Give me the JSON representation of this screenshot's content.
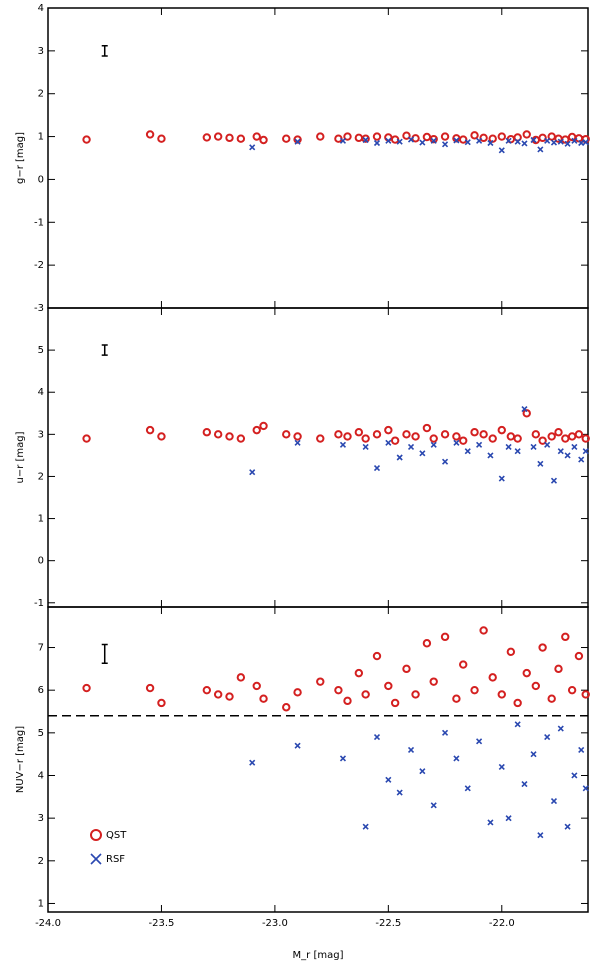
{
  "chart_data": [
    {
      "type": "scatter",
      "ylabel": "g−r [mag]",
      "xlim": [
        -24,
        -21.62
      ],
      "ylim": [
        -3,
        4
      ],
      "yticks": [
        -3,
        -2,
        -1,
        0,
        1,
        2,
        3,
        4
      ],
      "error_marker": {
        "x": -23.75,
        "y": 3,
        "yerr": 0.12
      },
      "series": [
        {
          "color": "#d42020",
          "x": [
            -23.83,
            -23.55,
            -23.5,
            -23.3,
            -23.25,
            -23.2,
            -23.15,
            -23.08,
            -23.05,
            -22.95,
            -22.9,
            -22.8,
            -22.72,
            -22.68,
            -22.63,
            -22.6,
            -22.55,
            -22.5,
            -22.47,
            -22.42,
            -22.38,
            -22.33,
            -22.3,
            -22.25,
            -22.2,
            -22.17,
            -22.12,
            -22.08,
            -22.04,
            -22.0,
            -21.96,
            -21.93,
            -21.89,
            -21.85,
            -21.82,
            -21.78,
            -21.75,
            -21.72,
            -21.69,
            -21.66,
            -21.63
          ],
          "values": [
            0.93,
            1.05,
            0.95,
            0.98,
            1.0,
            0.97,
            0.95,
            1.0,
            0.92,
            0.95,
            0.93,
            1.0,
            0.95,
            1.0,
            0.97,
            0.95,
            1.0,
            0.98,
            0.93,
            1.02,
            0.96,
            0.99,
            0.94,
            1.0,
            0.96,
            0.93,
            1.03,
            0.97,
            0.95,
            1.0,
            0.94,
            0.98,
            1.05,
            0.92,
            0.97,
            1.0,
            0.95,
            0.93,
            0.99,
            0.96,
            0.94
          ]
        },
        {
          "color": "#2a48b0",
          "x": [
            -23.1,
            -22.9,
            -22.7,
            -22.6,
            -22.55,
            -22.5,
            -22.45,
            -22.4,
            -22.35,
            -22.3,
            -22.25,
            -22.2,
            -22.15,
            -22.1,
            -22.05,
            -22.0,
            -21.97,
            -21.93,
            -21.9,
            -21.86,
            -21.83,
            -21.8,
            -21.77,
            -21.74,
            -21.71,
            -21.68,
            -21.65,
            -21.63
          ],
          "values": [
            0.75,
            0.88,
            0.9,
            0.92,
            0.85,
            0.9,
            0.88,
            0.93,
            0.86,
            0.9,
            0.82,
            0.91,
            0.87,
            0.9,
            0.85,
            0.68,
            0.9,
            0.88,
            0.84,
            0.92,
            0.7,
            0.9,
            0.86,
            0.88,
            0.83,
            0.9,
            0.85,
            0.87
          ]
        }
      ]
    },
    {
      "type": "scatter",
      "ylabel": "u−r [mag]",
      "xlim": [
        -24,
        -21.62
      ],
      "ylim": [
        -1.1,
        6
      ],
      "yticks": [
        -1,
        0,
        1,
        2,
        3,
        4,
        5
      ],
      "error_marker": {
        "x": -23.75,
        "y": 5,
        "yerr": 0.12
      },
      "series": [
        {
          "color": "#d42020",
          "x": [
            -23.83,
            -23.55,
            -23.5,
            -23.3,
            -23.25,
            -23.2,
            -23.15,
            -23.08,
            -23.05,
            -22.95,
            -22.9,
            -22.8,
            -22.72,
            -22.68,
            -22.63,
            -22.6,
            -22.55,
            -22.5,
            -22.47,
            -22.42,
            -22.38,
            -22.33,
            -22.3,
            -22.25,
            -22.2,
            -22.17,
            -22.12,
            -22.08,
            -22.04,
            -22.0,
            -21.96,
            -21.93,
            -21.89,
            -21.85,
            -21.82,
            -21.78,
            -21.75,
            -21.72,
            -21.69,
            -21.66,
            -21.63
          ],
          "values": [
            2.9,
            3.1,
            2.95,
            3.05,
            3.0,
            2.95,
            2.9,
            3.1,
            3.2,
            3.0,
            2.95,
            2.9,
            3.0,
            2.95,
            3.05,
            2.9,
            3.0,
            3.1,
            2.85,
            3.0,
            2.95,
            3.15,
            2.9,
            3.0,
            2.95,
            2.85,
            3.05,
            3.0,
            2.9,
            3.1,
            2.95,
            2.9,
            3.5,
            3.0,
            2.85,
            2.95,
            3.05,
            2.9,
            2.95,
            3.0,
            2.9
          ]
        },
        {
          "color": "#2a48b0",
          "x": [
            -23.1,
            -22.9,
            -22.7,
            -22.6,
            -22.55,
            -22.5,
            -22.45,
            -22.4,
            -22.35,
            -22.3,
            -22.25,
            -22.2,
            -22.15,
            -22.1,
            -22.05,
            -22.0,
            -21.97,
            -21.93,
            -21.9,
            -21.86,
            -21.83,
            -21.8,
            -21.77,
            -21.74,
            -21.71,
            -21.68,
            -21.65,
            -21.63
          ],
          "values": [
            2.1,
            2.8,
            2.75,
            2.7,
            2.2,
            2.8,
            2.45,
            2.7,
            2.55,
            2.75,
            2.35,
            2.8,
            2.6,
            2.75,
            2.5,
            1.95,
            2.7,
            2.6,
            3.6,
            2.7,
            2.3,
            2.75,
            1.9,
            2.6,
            2.5,
            2.7,
            2.4,
            2.6
          ]
        }
      ]
    },
    {
      "type": "scatter",
      "ylabel": "NUV−r [mag]",
      "xlabel": "M_r [mag]",
      "xlim": [
        -24,
        -21.62
      ],
      "ylim": [
        0.8,
        7.95
      ],
      "yticks": [
        1,
        2,
        3,
        4,
        5,
        6,
        7
      ],
      "xticks": [
        {
          "value": -24,
          "label": "-24.0"
        },
        {
          "value": -23.5,
          "label": "-23.5"
        },
        {
          "value": -23,
          "label": "-23.0"
        },
        {
          "value": -22.5,
          "label": "-22.5"
        },
        {
          "value": -22,
          "label": "-22.0"
        }
      ],
      "hline": 5.4,
      "error_marker": {
        "x": -23.75,
        "y": 6.85,
        "yerr": 0.22
      },
      "series": [
        {
          "name": "QST",
          "color": "#d42020",
          "x": [
            -23.83,
            -23.55,
            -23.5,
            -23.3,
            -23.25,
            -23.2,
            -23.15,
            -23.08,
            -23.05,
            -22.95,
            -22.9,
            -22.8,
            -22.72,
            -22.68,
            -22.63,
            -22.6,
            -22.55,
            -22.5,
            -22.47,
            -22.42,
            -22.38,
            -22.33,
            -22.3,
            -22.25,
            -22.2,
            -22.17,
            -22.12,
            -22.08,
            -22.04,
            -22.0,
            -21.96,
            -21.93,
            -21.89,
            -21.85,
            -21.82,
            -21.78,
            -21.75,
            -21.72,
            -21.69,
            -21.66,
            -21.63
          ],
          "values": [
            6.05,
            6.05,
            5.7,
            6.0,
            5.9,
            5.85,
            6.3,
            6.1,
            5.8,
            5.6,
            5.95,
            6.2,
            6.0,
            5.75,
            6.4,
            5.9,
            6.8,
            6.1,
            5.7,
            6.5,
            5.9,
            7.1,
            6.2,
            7.25,
            5.8,
            6.6,
            6.0,
            7.4,
            6.3,
            5.9,
            6.9,
            5.7,
            6.4,
            6.1,
            7.0,
            5.8,
            6.5,
            7.25,
            6.0,
            6.8,
            5.9
          ]
        },
        {
          "name": "RSF",
          "color": "#2a48b0",
          "x": [
            -23.1,
            -22.9,
            -22.7,
            -22.6,
            -22.55,
            -22.5,
            -22.45,
            -22.4,
            -22.35,
            -22.3,
            -22.25,
            -22.2,
            -22.15,
            -22.1,
            -22.05,
            -22.0,
            -21.97,
            -21.93,
            -21.9,
            -21.86,
            -21.83,
            -21.8,
            -21.77,
            -21.74,
            -21.71,
            -21.68,
            -21.65,
            -21.63
          ],
          "values": [
            4.3,
            4.7,
            4.4,
            2.8,
            4.9,
            3.9,
            3.6,
            4.6,
            4.1,
            3.3,
            5.0,
            4.4,
            3.7,
            4.8,
            2.9,
            4.2,
            3.0,
            5.2,
            3.8,
            4.5,
            2.6,
            4.9,
            3.4,
            5.1,
            2.8,
            4.0,
            4.6,
            3.7
          ]
        }
      ]
    }
  ]
}
